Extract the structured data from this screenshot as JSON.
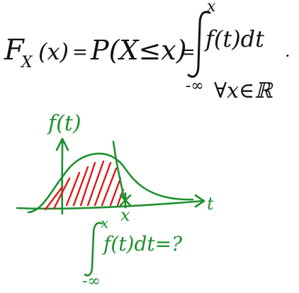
{
  "definition": {
    "lhs": "F",
    "lhs_sub": "X",
    "lhs_arg": "(x)",
    "eq1": "=",
    "prob": "P(X≤x)",
    "eq2": "=",
    "integral_upper": "x",
    "integral_lower": "-∞",
    "integrand": "f(t)dt",
    "trailing_dot": ".",
    "quantifier": "∀x∈ℝ"
  },
  "graph": {
    "y_axis_label": "f(t)",
    "x_axis_label": "t",
    "x_marker_label": "x",
    "marker_symbol": "*"
  },
  "question": {
    "integral_upper": "x",
    "integral_lower": "-∞",
    "integrand": "f(t)dt=?"
  },
  "colors": {
    "black_ink": "#111111",
    "green_ink": "#1e8f2e",
    "red_hatch": "#e01818"
  }
}
